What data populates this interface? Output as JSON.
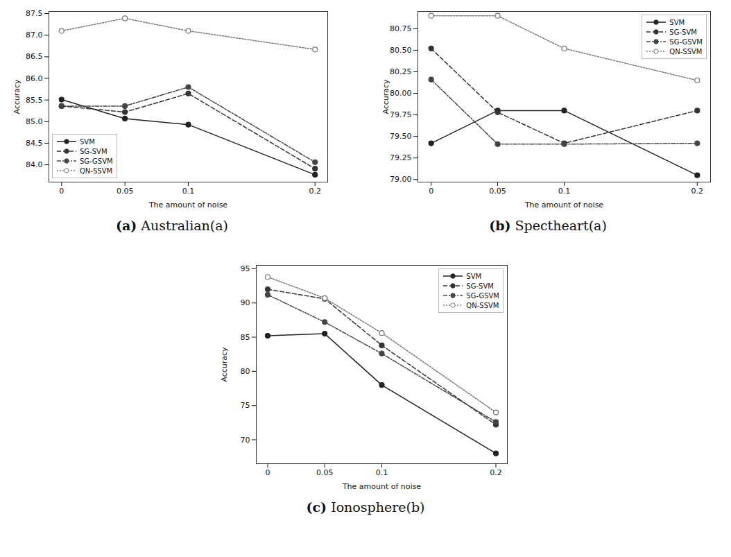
{
  "chart_data": [
    {
      "type": "line",
      "panel": "(a)",
      "title": "Australian(a)",
      "x_label": "The amount of noise",
      "y_label": "Accuracy",
      "x": [
        0,
        0.05,
        0.1,
        0.2
      ],
      "xlim": [
        -0.01,
        0.21
      ],
      "xticks": [
        0,
        0.05,
        0.1,
        0.2
      ],
      "ylim": [
        83.6,
        87.55
      ],
      "yticks": [
        {
          "value": 84,
          "label": "84.0"
        },
        84.5,
        {
          "value": 85,
          "label": "85.0"
        },
        85.5,
        {
          "value": 86,
          "label": "86.0"
        },
        86.5,
        {
          "value": 87,
          "label": "87.0"
        },
        87.5
      ],
      "legend": "lower left",
      "series": [
        {
          "name": "SVM",
          "color": "#222222",
          "marker": "circle",
          "line_style": "solid",
          "values": [
            85.51,
            85.07,
            84.93,
            83.77
          ]
        },
        {
          "name": "SG-SVM",
          "color": "#333333",
          "marker": "circle",
          "line_style": "dashed",
          "values": [
            85.36,
            85.22,
            85.65,
            83.91
          ]
        },
        {
          "name": "SG-GSVM",
          "color": "#444444",
          "marker": "circle",
          "line_style": "dashdot",
          "values": [
            85.36,
            85.36,
            85.8,
            84.06
          ]
        },
        {
          "name": "QN-SSVM",
          "color": "#777777",
          "marker": "circle-open",
          "line_style": "dotted",
          "values": [
            87.1,
            87.39,
            87.1,
            86.67
          ]
        }
      ]
    },
    {
      "type": "line",
      "panel": "(b)",
      "title": "Spectheart(a)",
      "x_label": "The amount of noise",
      "y_label": "Accuracy",
      "x": [
        0,
        0.05,
        0.1,
        0.2
      ],
      "xlim": [
        -0.01,
        0.21
      ],
      "xticks": [
        0,
        0.05,
        0.1,
        0.2
      ],
      "ylim": [
        78.97,
        80.95
      ],
      "yticks": [
        {
          "value": 79,
          "label": "79.00"
        },
        79.25,
        {
          "value": 79.5,
          "label": "79.50"
        },
        79.75,
        {
          "value": 80,
          "label": "80.00"
        },
        80.25,
        {
          "value": 80.5,
          "label": "80.50"
        },
        80.75
      ],
      "legend": "upper right",
      "series": [
        {
          "name": "SVM",
          "color": "#222222",
          "marker": "circle",
          "line_style": "solid",
          "values": [
            79.42,
            79.8,
            79.8,
            79.05
          ]
        },
        {
          "name": "SG-SVM",
          "color": "#333333",
          "marker": "circle",
          "line_style": "dashed",
          "values": [
            80.52,
            79.78,
            79.42,
            79.8
          ]
        },
        {
          "name": "SG-GSVM",
          "color": "#444444",
          "marker": "circle",
          "line_style": "dashdot",
          "values": [
            80.16,
            79.41,
            79.41,
            79.42
          ]
        },
        {
          "name": "QN-SSVM",
          "color": "#777777",
          "marker": "circle-open",
          "line_style": "dotted",
          "values": [
            80.9,
            80.9,
            80.52,
            80.15
          ]
        }
      ]
    },
    {
      "type": "line",
      "panel": "(c)",
      "title": "Ionosphere(b)",
      "x_label": "The amount of noise",
      "y_label": "Accuracy",
      "x": [
        0,
        0.05,
        0.1,
        0.2
      ],
      "xlim": [
        -0.01,
        0.21
      ],
      "xticks": [
        0,
        0.05,
        0.1,
        0.2
      ],
      "ylim": [
        66.5,
        95.5
      ],
      "yticks": [
        70,
        75,
        80,
        85,
        90,
        95
      ],
      "legend": "upper right",
      "series": [
        {
          "name": "SVM",
          "color": "#222222",
          "marker": "circle",
          "line_style": "solid",
          "values": [
            85.2,
            85.5,
            78.0,
            68.0
          ]
        },
        {
          "name": "SG-SVM",
          "color": "#333333",
          "marker": "circle",
          "line_style": "dashed",
          "values": [
            92.0,
            90.6,
            83.8,
            72.2
          ]
        },
        {
          "name": "SG-GSVM",
          "color": "#444444",
          "marker": "circle",
          "line_style": "dashdot",
          "values": [
            91.2,
            87.2,
            82.6,
            72.6
          ]
        },
        {
          "name": "QN-SSVM",
          "color": "#777777",
          "marker": "circle-open",
          "line_style": "dotted",
          "values": [
            93.8,
            90.7,
            85.6,
            74.0
          ]
        }
      ]
    }
  ]
}
